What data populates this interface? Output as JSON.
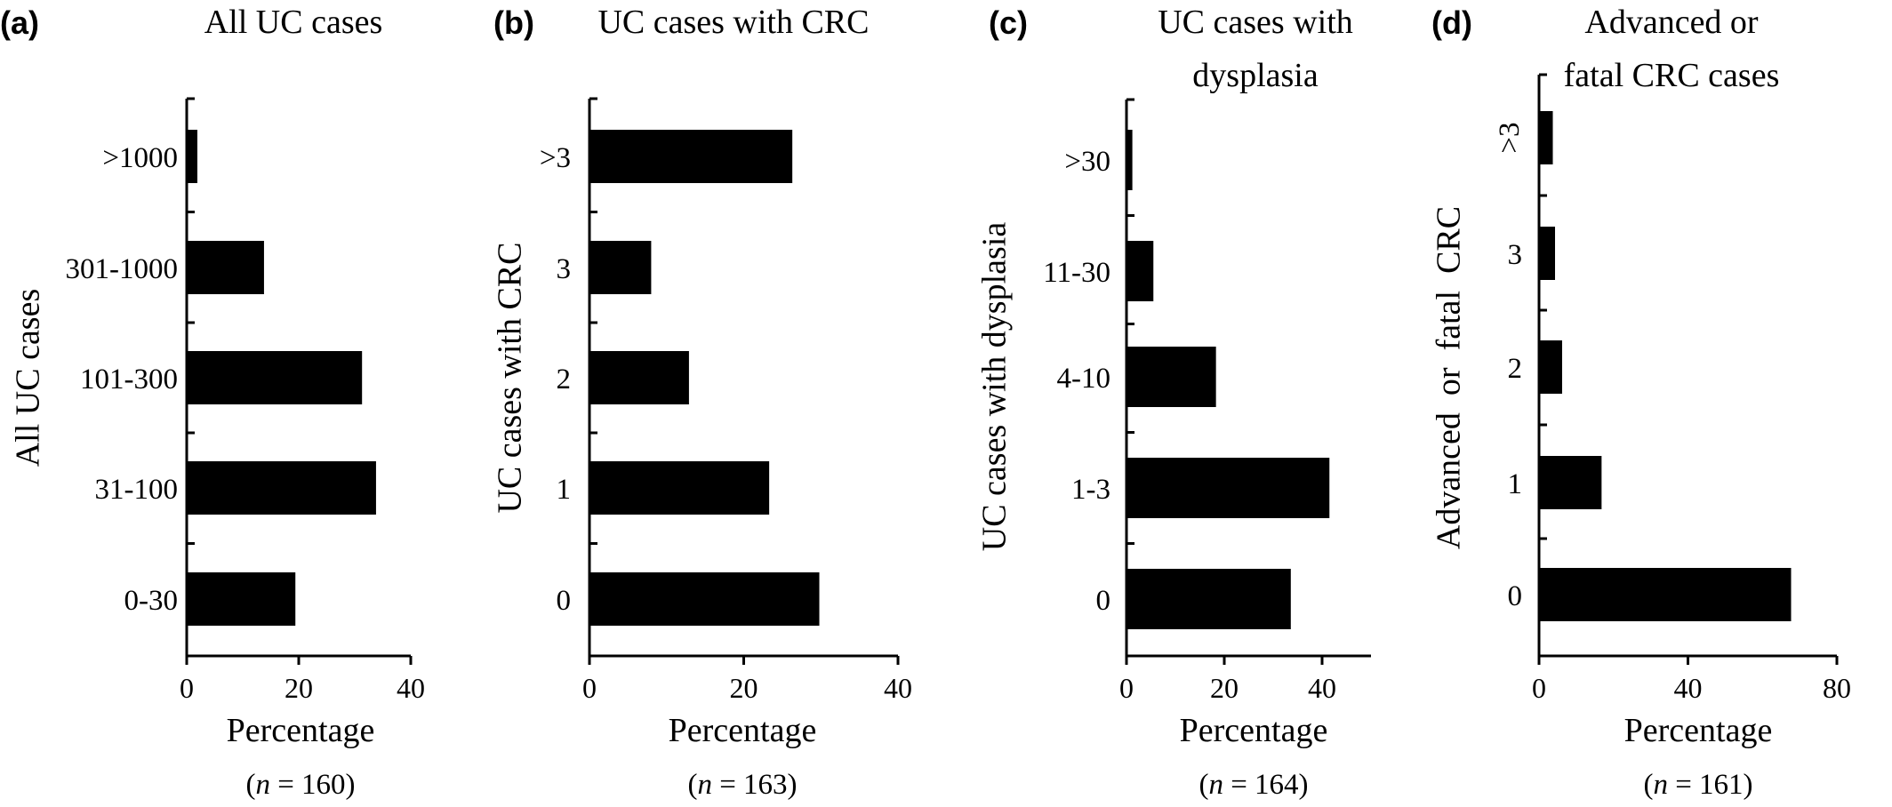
{
  "figure": {
    "background": "#ffffff",
    "bar_color": "#000000"
  },
  "chart_data": [
    {
      "type": "bar",
      "orientation": "horizontal",
      "panel_label": "(a)",
      "title": "All UC cases",
      "title_lines": [
        "All UC cases"
      ],
      "ylabel": "All UC cases",
      "xlabel": "Percentage",
      "n_prefix": "(",
      "n_var": "n",
      "n_suffix": " = 160)",
      "categories": [
        "0-30",
        "31-100",
        "101-300",
        "301-1000",
        ">1000"
      ],
      "values": [
        19.4,
        33.8,
        31.3,
        13.8,
        1.9
      ],
      "xlim": [
        0,
        40
      ],
      "xticks": [
        "0",
        "20",
        "40"
      ]
    },
    {
      "type": "bar",
      "orientation": "horizontal",
      "panel_label": "(b)",
      "title": "UC cases with CRC",
      "title_lines": [
        "UC cases with CRC"
      ],
      "ylabel": "UC cases with CRC",
      "xlabel": "Percentage",
      "n_prefix": "(",
      "n_var": "n",
      "n_suffix": " = 163)",
      "categories": [
        "0",
        "1",
        "2",
        "3",
        ">3"
      ],
      "values": [
        29.8,
        23.3,
        12.9,
        8.0,
        26.3
      ],
      "xlim": [
        0,
        40
      ],
      "xticks": [
        "0",
        "20",
        "40"
      ]
    },
    {
      "type": "bar",
      "orientation": "horizontal",
      "panel_label": "(c)",
      "title": "UC cases with dysplasia",
      "title_lines": [
        "UC cases with",
        "dysplasia"
      ],
      "ylabel": "UC cases with dysplasia",
      "xlabel": "Percentage",
      "n_prefix": "(",
      "n_var": "n",
      "n_suffix": " = 164)",
      "categories": [
        "0",
        "1-3",
        "4-10",
        "11-30",
        ">30"
      ],
      "values": [
        33.6,
        41.5,
        18.3,
        5.5,
        1.2
      ],
      "xlim": [
        0,
        50
      ],
      "xticks": [
        "0",
        "20",
        "40"
      ]
    },
    {
      "type": "bar",
      "orientation": "horizontal",
      "panel_label": "(d)",
      "title": "Advanced or fatal CRC cases",
      "title_lines": [
        "Advanced or",
        "fatal CRC cases"
      ],
      "ylabel": "Advanced  or  fatal  CRC",
      "xlabel": "Percentage",
      "n_prefix": "(",
      "n_var": "n",
      "n_suffix": " = 161)",
      "categories": [
        "0",
        "1",
        "2",
        "3",
        ">3"
      ],
      "values": [
        67.7,
        16.8,
        6.2,
        4.3,
        3.7
      ],
      "xlim": [
        0,
        80
      ],
      "xticks": [
        "0",
        "40",
        "80"
      ]
    }
  ]
}
